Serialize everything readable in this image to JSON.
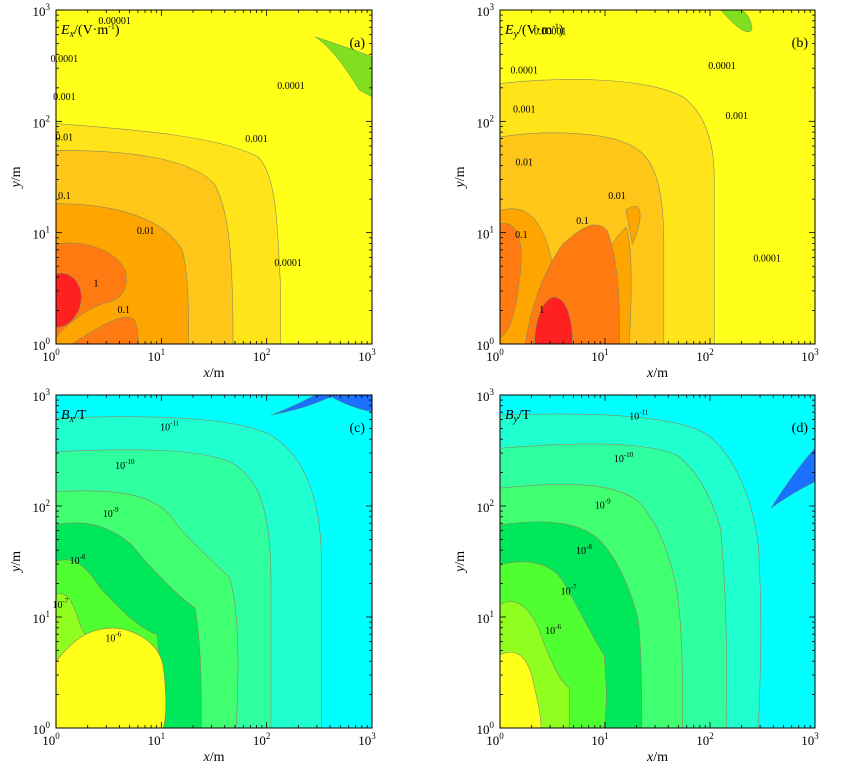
{
  "chart_data": [
    {
      "id": "a",
      "type": "heatmap",
      "panel_label": "(a)",
      "title_var": "E",
      "title_sub": "x",
      "title_unit": "/(V·m",
      "title_unit_sup": "-1",
      "title_unit_tail": ")",
      "xlabel_var": "x",
      "xlabel_unit": "/m",
      "ylabel_var": "y",
      "ylabel_unit": "/m",
      "xscale": "log",
      "yscale": "log",
      "xlim": [
        1,
        1000
      ],
      "ylim": [
        1,
        1000
      ],
      "x_ticks": [
        {
          "base": "10",
          "exp": "0"
        },
        {
          "base": "10",
          "exp": "1"
        },
        {
          "base": "10",
          "exp": "2"
        },
        {
          "base": "10",
          "exp": "3"
        }
      ],
      "y_ticks": [
        {
          "base": "10",
          "exp": "0"
        },
        {
          "base": "10",
          "exp": "1"
        },
        {
          "base": "10",
          "exp": "2"
        },
        {
          "base": "10",
          "exp": "3"
        }
      ],
      "palette": [
        "#ffff1a",
        "#ffe41a",
        "#ffc61a",
        "#ffa500",
        "#ff7a10",
        "#ff2020"
      ],
      "levels": [
        0.0001,
        0.001,
        0.01,
        0.1,
        1
      ],
      "contour_labels": [
        {
          "text": "0.00001",
          "x": 3.6,
          "y": 750
        },
        {
          "text": "0.0001",
          "x": 1.2,
          "y": 340
        },
        {
          "text": "0.001",
          "x": 1.2,
          "y": 155
        },
        {
          "text": "0.01",
          "x": 1.2,
          "y": 67
        },
        {
          "text": "0.1",
          "x": 1.2,
          "y": 20
        },
        {
          "text": "1",
          "x": 2.4,
          "y": 3.3
        },
        {
          "text": "0.1",
          "x": 4.4,
          "y": 1.9
        },
        {
          "text": "0.01",
          "x": 7.1,
          "y": 9.7
        },
        {
          "text": "0.001",
          "x": 80,
          "y": 65
        },
        {
          "text": "0.0001",
          "x": 170,
          "y": 195
        },
        {
          "text": "0.0001",
          "x": 160,
          "y": 5
        }
      ]
    },
    {
      "id": "b",
      "type": "heatmap",
      "panel_label": "(b)",
      "title_var": "E",
      "title_sub": "y",
      "title_unit": "/(V·m",
      "title_unit_sup": "-1",
      "title_unit_tail": ")",
      "xlabel_var": "x",
      "xlabel_unit": "/m",
      "ylabel_var": "y",
      "ylabel_unit": "/m",
      "xscale": "log",
      "yscale": "log",
      "xlim": [
        1,
        1000
      ],
      "ylim": [
        1,
        1000
      ],
      "x_ticks": [
        {
          "base": "10",
          "exp": "0"
        },
        {
          "base": "10",
          "exp": "1"
        },
        {
          "base": "10",
          "exp": "2"
        },
        {
          "base": "10",
          "exp": "3"
        }
      ],
      "y_ticks": [
        {
          "base": "10",
          "exp": "0"
        },
        {
          "base": "10",
          "exp": "1"
        },
        {
          "base": "10",
          "exp": "2"
        },
        {
          "base": "10",
          "exp": "3"
        }
      ],
      "palette": [
        "#ffff1a",
        "#ffe41a",
        "#ffc61a",
        "#ffa500",
        "#ff7a10",
        "#ff2020"
      ],
      "levels": [
        0.0001,
        0.001,
        0.01,
        0.1,
        1
      ],
      "contour_labels": [
        {
          "text": "0.00001",
          "x": 3.0,
          "y": 600
        },
        {
          "text": "0.0001",
          "x": 1.7,
          "y": 270
        },
        {
          "text": "0.001",
          "x": 1.7,
          "y": 120
        },
        {
          "text": "0.01",
          "x": 1.7,
          "y": 40
        },
        {
          "text": "0.1",
          "x": 1.6,
          "y": 9
        },
        {
          "text": "1",
          "x": 2.5,
          "y": 1.9
        },
        {
          "text": "0.1",
          "x": 6.1,
          "y": 12
        },
        {
          "text": "0.01",
          "x": 13,
          "y": 20
        },
        {
          "text": "0.001",
          "x": 180,
          "y": 105
        },
        {
          "text": "0.0001",
          "x": 130,
          "y": 295
        },
        {
          "text": "0.0001",
          "x": 350,
          "y": 5.5
        }
      ]
    },
    {
      "id": "c",
      "type": "heatmap",
      "panel_label": "(c)",
      "title_var": "B",
      "title_sub": "x",
      "title_unit": "/T",
      "title_unit_sup": "",
      "title_unit_tail": "",
      "xlabel_var": "x",
      "xlabel_unit": "/m",
      "ylabel_var": "y",
      "ylabel_unit": "/m",
      "xscale": "log",
      "yscale": "log",
      "xlim": [
        1,
        1000
      ],
      "ylim": [
        1,
        1000
      ],
      "x_ticks": [
        {
          "base": "10",
          "exp": "0"
        },
        {
          "base": "10",
          "exp": "1"
        },
        {
          "base": "10",
          "exp": "2"
        },
        {
          "base": "10",
          "exp": "3"
        }
      ],
      "y_ticks": [
        {
          "base": "10",
          "exp": "0"
        },
        {
          "base": "10",
          "exp": "1"
        },
        {
          "base": "10",
          "exp": "2"
        },
        {
          "base": "10",
          "exp": "3"
        }
      ],
      "palette": [
        "#00ffff",
        "#1fffd0",
        "#30ffa0",
        "#40ff70",
        "#00e85a",
        "#50ff30",
        "#90ff20",
        "#ffff1a",
        "#1a70ff"
      ],
      "levels": [
        1e-11,
        1e-10,
        1e-09,
        1e-08,
        1e-07,
        1e-06
      ],
      "contour_labels": [
        {
          "base": "10",
          "exp": "-11",
          "x": 12,
          "y": 480
        },
        {
          "base": "10",
          "exp": "-10",
          "x": 4.5,
          "y": 215
        },
        {
          "base": "10",
          "exp": "-9",
          "x": 3.3,
          "y": 80
        },
        {
          "base": "10",
          "exp": "-8",
          "x": 1.6,
          "y": 30
        },
        {
          "base": "10",
          "exp": "-7",
          "x": 1.1,
          "y": 12
        },
        {
          "base": "10",
          "exp": "-6",
          "x": 3.5,
          "y": 6
        }
      ]
    },
    {
      "id": "d",
      "type": "heatmap",
      "panel_label": "(d)",
      "title_var": "B",
      "title_sub": "y",
      "title_unit": "/T",
      "title_unit_sup": "",
      "title_unit_tail": "",
      "xlabel_var": "x",
      "xlabel_unit": "/m",
      "ylabel_var": "y",
      "ylabel_unit": "/m",
      "xscale": "log",
      "yscale": "log",
      "xlim": [
        1,
        1000
      ],
      "ylim": [
        1,
        1000
      ],
      "x_ticks": [
        {
          "base": "10",
          "exp": "0"
        },
        {
          "base": "10",
          "exp": "1"
        },
        {
          "base": "10",
          "exp": "2"
        },
        {
          "base": "10",
          "exp": "3"
        }
      ],
      "y_ticks": [
        {
          "base": "10",
          "exp": "0"
        },
        {
          "base": "10",
          "exp": "1"
        },
        {
          "base": "10",
          "exp": "2"
        },
        {
          "base": "10",
          "exp": "3"
        }
      ],
      "palette": [
        "#00ffff",
        "#1fffd0",
        "#30ffa0",
        "#40ff70",
        "#00e85a",
        "#50ff30",
        "#90ff20",
        "#ffff1a",
        "#1a70ff"
      ],
      "levels": [
        1e-11,
        1e-10,
        1e-09,
        1e-08,
        1e-07,
        1e-06
      ],
      "contour_labels": [
        {
          "base": "10",
          "exp": "-11",
          "x": 21,
          "y": 600
        },
        {
          "base": "10",
          "exp": "-10",
          "x": 15,
          "y": 250
        },
        {
          "base": "10",
          "exp": "-9",
          "x": 9.5,
          "y": 95
        },
        {
          "base": "10",
          "exp": "-8",
          "x": 6.3,
          "y": 37
        },
        {
          "base": "10",
          "exp": "-7",
          "x": 4.5,
          "y": 16
        },
        {
          "base": "10",
          "exp": "-6",
          "x": 3.2,
          "y": 7
        }
      ]
    }
  ]
}
